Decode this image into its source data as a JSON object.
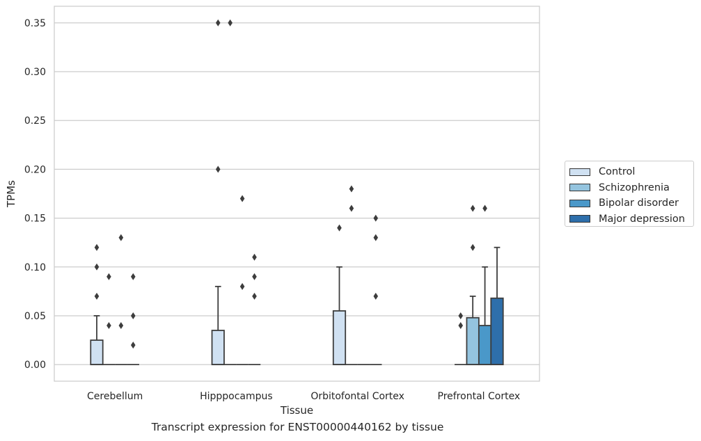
{
  "chart_data": {
    "type": "box",
    "title": "",
    "xlabel": "Tissue",
    "ylabel": "TPMs",
    "caption": "Transcript expression for ENST00000440162 by tissue",
    "ylim": [
      -0.017,
      0.367
    ],
    "yticks": [
      "0.00",
      "0.05",
      "0.10",
      "0.15",
      "0.20",
      "0.25",
      "0.30",
      "0.35"
    ],
    "ytick_values": [
      0,
      0.05,
      0.1,
      0.15,
      0.2,
      0.25,
      0.3,
      0.35
    ],
    "grid": "horizontal",
    "legend_placement": "right",
    "categories": [
      "Cerebellum",
      "Hipppocampus",
      "Orbitofontal Cortex",
      "Prefrontal Cortex"
    ],
    "series": [
      {
        "name": "Control",
        "color": "#d0e1f2",
        "boxes": [
          {
            "q1": 0,
            "median": 0,
            "q3": 0.025,
            "whisker_low": 0,
            "whisker_high": 0.05,
            "outliers": [
              0.07,
              0.1,
              0.12
            ]
          },
          {
            "q1": 0,
            "median": 0,
            "q3": 0.035,
            "whisker_low": 0,
            "whisker_high": 0.08,
            "outliers": [
              0.2,
              0.35
            ]
          },
          {
            "q1": 0,
            "median": 0,
            "q3": 0.055,
            "whisker_low": 0,
            "whisker_high": 0.1,
            "outliers": [
              0.14
            ]
          },
          {
            "q1": 0,
            "median": 0,
            "q3": 0,
            "whisker_low": 0,
            "whisker_high": 0,
            "outliers": [
              0.04,
              0.05
            ]
          }
        ]
      },
      {
        "name": "Schizophrenia",
        "color": "#94c4df",
        "boxes": [
          {
            "q1": 0,
            "median": 0,
            "q3": 0,
            "whisker_low": 0,
            "whisker_high": 0,
            "outliers": [
              0.04,
              0.09
            ]
          },
          {
            "q1": 0,
            "median": 0,
            "q3": 0,
            "whisker_low": 0,
            "whisker_high": 0,
            "outliers": [
              0.35
            ]
          },
          {
            "q1": 0,
            "median": 0,
            "q3": 0,
            "whisker_low": 0,
            "whisker_high": 0,
            "outliers": [
              0.16,
              0.18
            ]
          },
          {
            "q1": 0,
            "median": 0,
            "q3": 0.048,
            "whisker_low": 0,
            "whisker_high": 0.07,
            "outliers": [
              0.12,
              0.16
            ]
          }
        ]
      },
      {
        "name": "Bipolar disorder",
        "color": "#4a98c9",
        "boxes": [
          {
            "q1": 0,
            "median": 0,
            "q3": 0,
            "whisker_low": 0,
            "whisker_high": 0,
            "outliers": [
              0.04,
              0.13
            ]
          },
          {
            "q1": 0,
            "median": 0,
            "q3": 0,
            "whisker_low": 0,
            "whisker_high": 0,
            "outliers": [
              0.08,
              0.17
            ]
          },
          {
            "q1": 0,
            "median": 0,
            "q3": 0,
            "whisker_low": 0,
            "whisker_high": 0,
            "outliers": []
          },
          {
            "q1": 0,
            "median": 0,
            "q3": 0.04,
            "whisker_low": 0,
            "whisker_high": 0.1,
            "outliers": [
              0.16
            ]
          }
        ]
      },
      {
        "name": "Major depression",
        "color": "#2e6fab",
        "boxes": [
          {
            "q1": 0,
            "median": 0,
            "q3": 0,
            "whisker_low": 0,
            "whisker_high": 0,
            "outliers": [
              0.02,
              0.05,
              0.09
            ]
          },
          {
            "q1": 0,
            "median": 0,
            "q3": 0,
            "whisker_low": 0,
            "whisker_high": 0,
            "outliers": [
              0.07,
              0.09,
              0.11
            ]
          },
          {
            "q1": 0,
            "median": 0,
            "q3": 0,
            "whisker_low": 0,
            "whisker_high": 0,
            "outliers": [
              0.07,
              0.13,
              0.15
            ]
          },
          {
            "q1": 0,
            "median": 0,
            "q3": 0.068,
            "whisker_low": 0,
            "whisker_high": 0.12,
            "outliers": []
          }
        ]
      }
    ]
  }
}
